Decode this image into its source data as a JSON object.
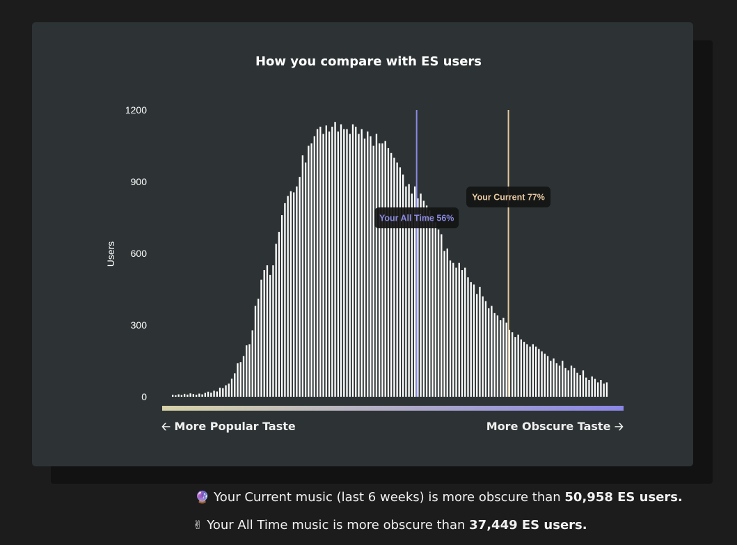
{
  "card": {
    "title": "How you compare with ES users",
    "left_nav": "More Popular Taste",
    "right_nav": "More Obscure Taste",
    "left_arrow_icon": "arrow-left-icon",
    "right_arrow_icon": "arrow-right-icon"
  },
  "stats": {
    "current_prefix": "Your Current music (last 6 weeks) is more obscure than",
    "current_value": "50,958 ES users.",
    "current_icon": "crystal-ball-icon",
    "alltime_prefix": "Your All Time music is more obscure than",
    "alltime_value": "37,449 ES users.",
    "alltime_icon": "victory-hand-icon"
  },
  "colors": {
    "bar": "#ffffff",
    "current_marker": "#e8c9a0",
    "alltime_marker": "#8a8ae0",
    "gradient_start": "#d8d3a8",
    "gradient_end": "#8a86e6"
  },
  "chart_data": {
    "type": "bar",
    "title": "How you compare with ES users",
    "xlabel": "",
    "ylabel": "Users",
    "ylim": [
      0,
      1200
    ],
    "yticks": [
      0,
      300,
      600,
      900,
      1200
    ],
    "x_range": [
      0,
      100
    ],
    "grid": false,
    "values": [
      8,
      6,
      10,
      7,
      12,
      9,
      14,
      11,
      8,
      13,
      10,
      16,
      21,
      17,
      25,
      22,
      38,
      36,
      48,
      55,
      76,
      98,
      140,
      145,
      170,
      215,
      220,
      278,
      380,
      410,
      490,
      530,
      550,
      510,
      550,
      640,
      690,
      760,
      810,
      840,
      860,
      855,
      880,
      920,
      1010,
      980,
      1050,
      1060,
      1090,
      1120,
      1130,
      1100,
      1135,
      1110,
      1130,
      1150,
      1110,
      1140,
      1120,
      1120,
      1100,
      1140,
      1130,
      1100,
      1120,
      1080,
      1110,
      1090,
      1050,
      1100,
      1060,
      1060,
      1070,
      1040,
      1020,
      1000,
      980,
      960,
      930,
      880,
      890,
      850,
      880,
      830,
      850,
      820,
      800,
      780,
      750,
      730,
      700,
      680,
      610,
      620,
      570,
      560,
      540,
      560,
      530,
      540,
      500,
      480,
      470,
      430,
      460,
      420,
      400,
      370,
      380,
      350,
      340,
      320,
      330,
      310,
      280,
      270,
      250,
      260,
      240,
      230,
      220,
      210,
      220,
      210,
      200,
      190,
      180,
      170,
      150,
      160,
      140,
      130,
      150,
      120,
      110,
      130,
      120,
      100,
      90,
      110,
      80,
      70,
      85,
      75,
      60,
      70,
      55,
      60
    ],
    "markers": [
      {
        "label": "Your All Time 56%",
        "value": 56
      },
      {
        "label": "Your Current 77%",
        "value": 77
      }
    ]
  }
}
